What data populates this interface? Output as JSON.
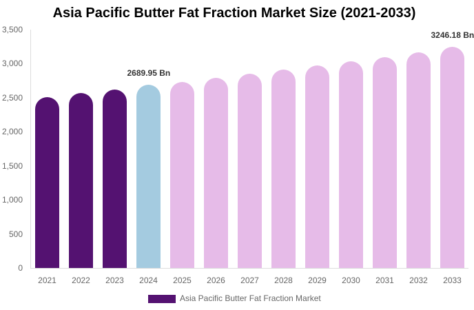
{
  "chart_data": {
    "type": "bar",
    "title": "Asia Pacific Butter Fat Fraction Market Size (2021-2033)",
    "xlabel": "",
    "ylabel": "",
    "ylim": [
      0,
      3500
    ],
    "yticks": [
      "0",
      "500",
      "1,000",
      "1,500",
      "2,000",
      "2,500",
      "3,000",
      "3,500"
    ],
    "grid": false,
    "legend_position": "bottom",
    "categories": [
      "2021",
      "2022",
      "2023",
      "2024",
      "2025",
      "2026",
      "2027",
      "2028",
      "2029",
      "2030",
      "2031",
      "2032",
      "2033"
    ],
    "series": [
      {
        "name": "Asia Pacific Butter Fat Fraction Market",
        "values": [
          2510,
          2570,
          2620,
          2689.95,
          2730,
          2790,
          2850,
          2910,
          2970,
          3035,
          3095,
          3165,
          3246.18
        ]
      }
    ],
    "bar_colors": [
      "#541271",
      "#541271",
      "#541271",
      "#a4cbe0",
      "#e6bbe8",
      "#e6bbe8",
      "#e6bbe8",
      "#e6bbe8",
      "#e6bbe8",
      "#e6bbe8",
      "#e6bbe8",
      "#e6bbe8",
      "#e6bbe8"
    ],
    "annotations": [
      {
        "category": "2024",
        "text": "2689.95 Bn"
      },
      {
        "category": "2033",
        "text": "3246.18 Bn"
      }
    ]
  },
  "legend": {
    "label": "Asia Pacific Butter Fat Fraction Market",
    "color": "#541271"
  }
}
